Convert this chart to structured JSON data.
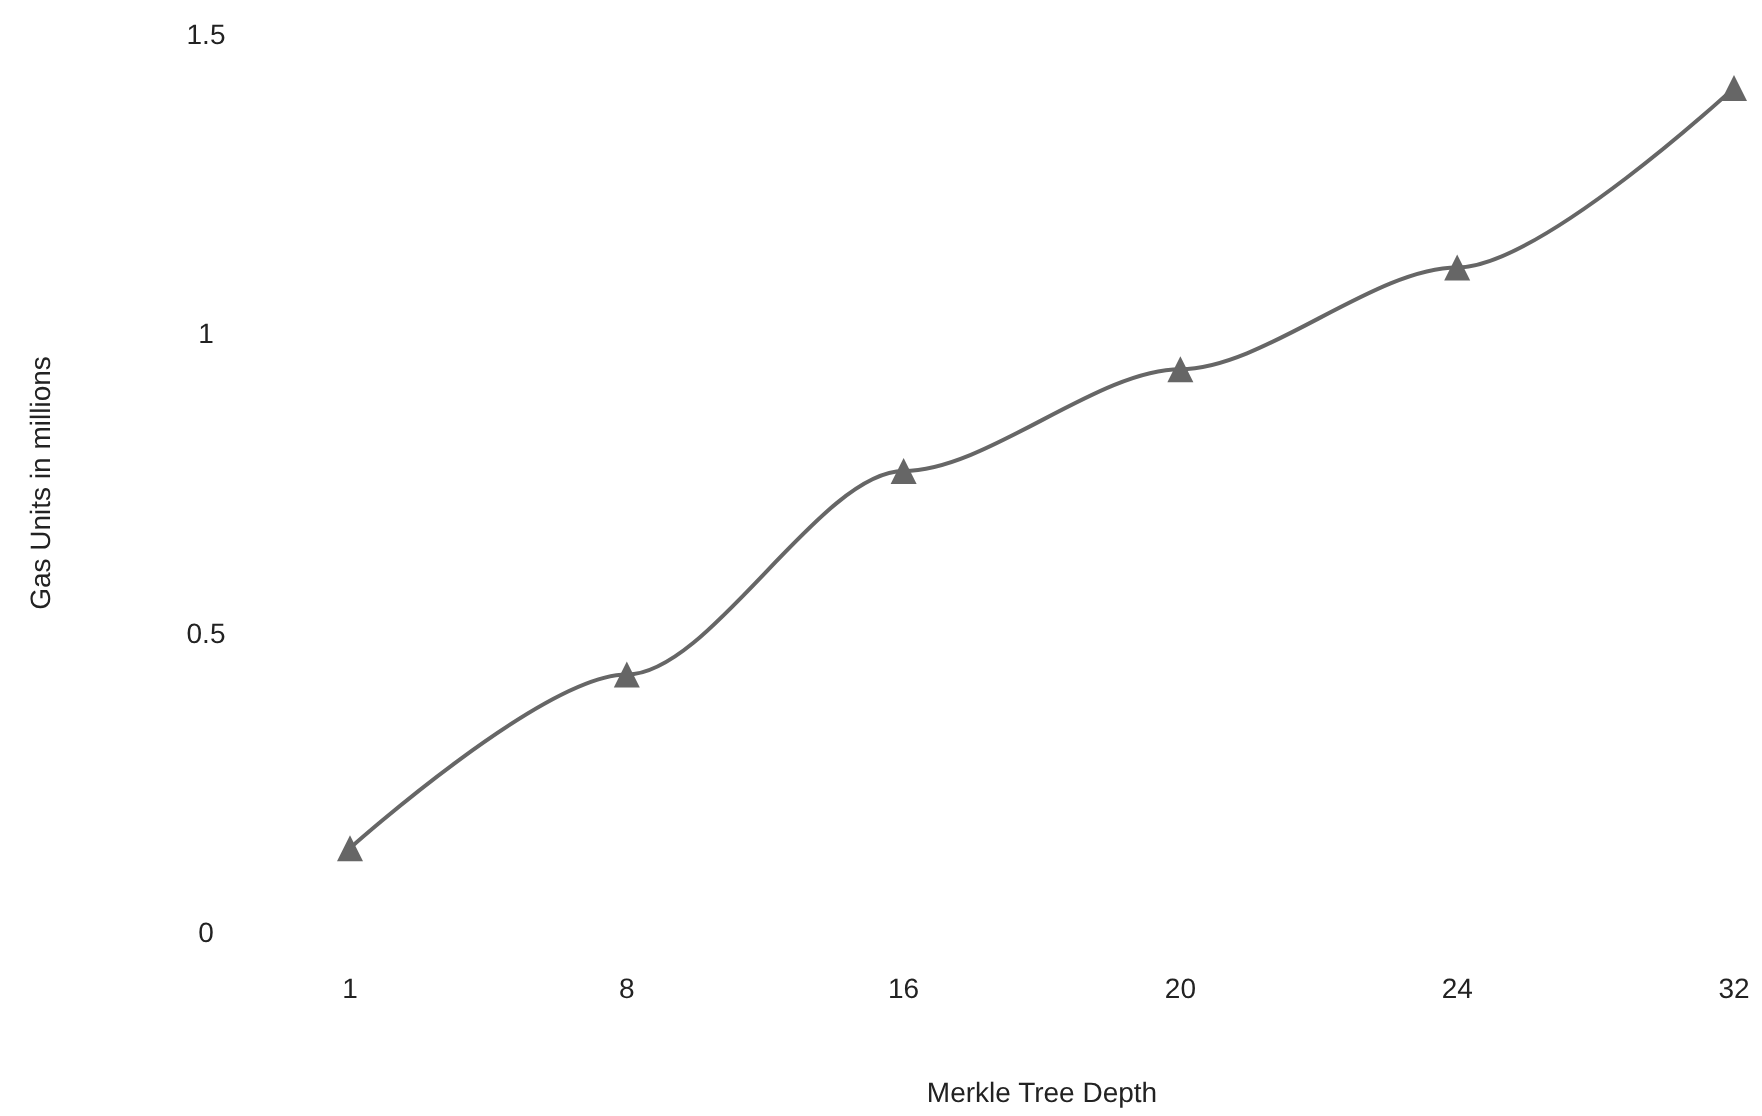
{
  "chart_data": {
    "type": "line",
    "xlabel": "Merkle Tree Depth",
    "ylabel": "Gas Units in millions",
    "categories": [
      "1",
      "8",
      "16",
      "20",
      "24",
      "32"
    ],
    "series": [
      {
        "color": "#666666",
        "values": [
          0.14,
          0.43,
          0.77,
          0.94,
          1.11,
          1.41
        ]
      }
    ],
    "ylim": [
      0,
      1.5
    ],
    "yticks": [
      0,
      0.5,
      1,
      1.5
    ],
    "grid": false,
    "marker": "triangle",
    "line_style": "solid"
  }
}
